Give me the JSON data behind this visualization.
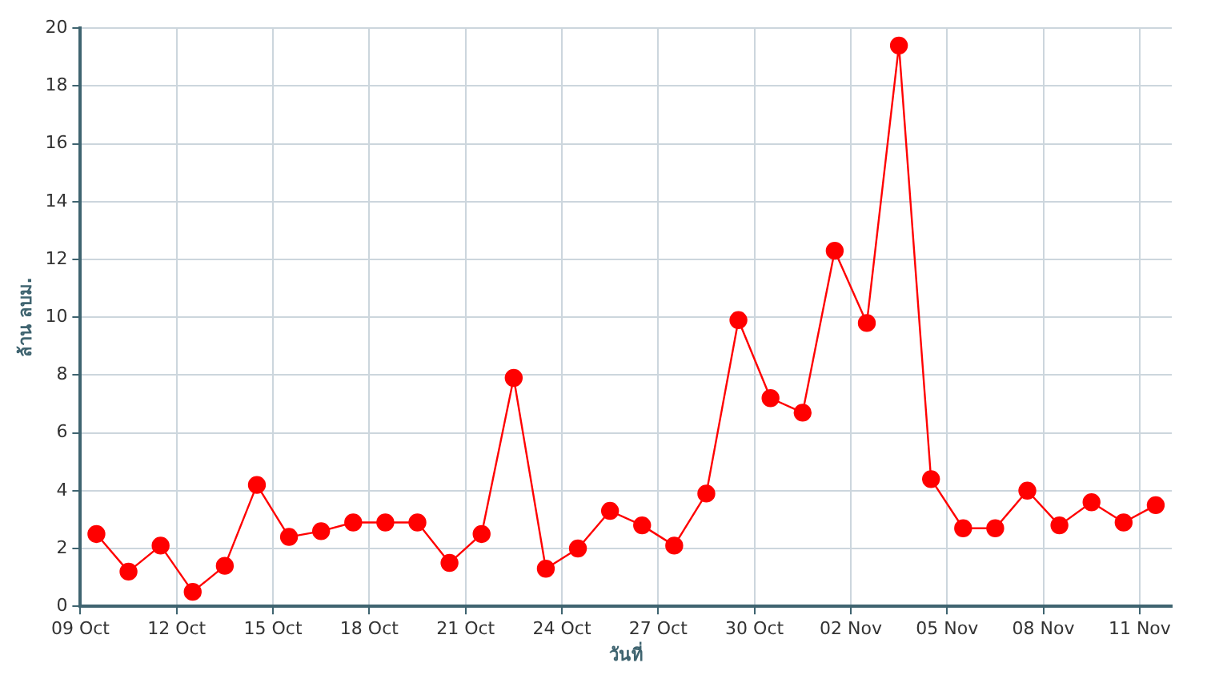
{
  "chart_data": {
    "type": "line",
    "xlabel": "วันที่",
    "ylabel": "ล้าน ลบม.",
    "x": [
      "--10-09T12:00",
      "--10-10T12:00",
      "--10-11T12:00",
      "--10-12T12:00",
      "--10-13T12:00",
      "--10-14T12:00",
      "--10-15T12:00",
      "--10-16T12:00",
      "--10-17T12:00",
      "--10-18T12:00",
      "--10-19T12:00",
      "--10-20T12:00",
      "--10-21T12:00",
      "--10-22T12:00",
      "--10-23T12:00",
      "--10-24T12:00",
      "--10-25T12:00",
      "--10-26T12:00",
      "--10-27T12:00",
      "--10-28T12:00",
      "--10-29T12:00",
      "--10-30T12:00",
      "--10-31T12:00",
      "--11-01T12:00",
      "--11-02T12:00",
      "--11-03T12:00",
      "--11-04T12:00",
      "--11-05T12:00",
      "--11-06T12:00",
      "--11-07T12:00",
      "--11-08T12:00",
      "--11-09T12:00",
      "--11-10T12:00",
      "--11-11T12:00"
    ],
    "series": [
      {
        "color": "#ff0000",
        "values": [
          2.5,
          1.2,
          2.1,
          0.5,
          1.4,
          4.2,
          2.4,
          2.6,
          2.9,
          2.9,
          2.9,
          1.5,
          2.5,
          7.9,
          1.3,
          2.0,
          3.3,
          2.8,
          2.1,
          3.9,
          9.9,
          7.2,
          6.7,
          12.3,
          9.8,
          19.4,
          4.4,
          2.7,
          2.7,
          4.0,
          2.8,
          3.6,
          2.9,
          3.5
        ]
      }
    ],
    "xlim": [
      "--10-09",
      "--11-12"
    ],
    "xticks": [
      {
        "value": "--10-09",
        "label": "09 Oct"
      },
      {
        "value": "--10-12",
        "label": "12 Oct"
      },
      {
        "value": "--10-15",
        "label": "15 Oct"
      },
      {
        "value": "--10-18",
        "label": "18 Oct"
      },
      {
        "value": "--10-21",
        "label": "21 Oct"
      },
      {
        "value": "--10-24",
        "label": "24 Oct"
      },
      {
        "value": "--10-27",
        "label": "27 Oct"
      },
      {
        "value": "--10-30",
        "label": "30 Oct"
      },
      {
        "value": "--11-02",
        "label": "02 Nov"
      },
      {
        "value": "--11-05",
        "label": "05 Nov"
      },
      {
        "value": "--11-08",
        "label": "08 Nov"
      },
      {
        "value": "--11-11",
        "label": "11 Nov"
      }
    ],
    "ylim": [
      0,
      20
    ],
    "yticks": [
      0,
      2,
      4,
      6,
      8,
      10,
      12,
      14,
      16,
      18,
      20
    ],
    "grid": true,
    "legend": false,
    "marker": "circle",
    "line_style": "solid"
  }
}
